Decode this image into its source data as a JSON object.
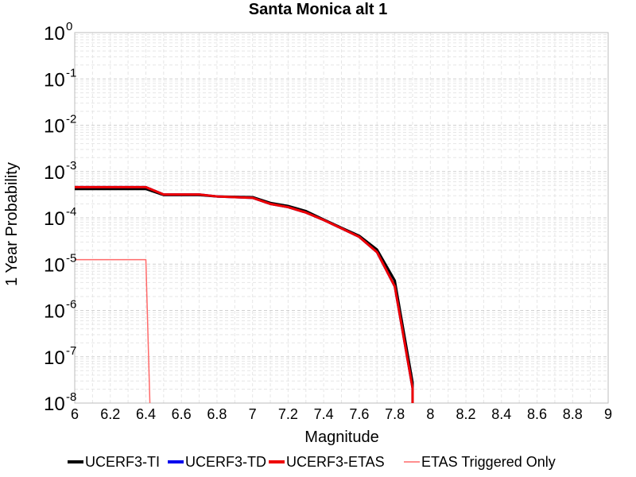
{
  "chart_data": {
    "type": "line",
    "title": "Santa Monica alt 1",
    "xlabel": "Magnitude",
    "ylabel": "1 Year Probability",
    "xlim": [
      6,
      9
    ],
    "ylim": [
      1e-08,
      1
    ],
    "yscale": "log",
    "grid": true,
    "legend_position": "bottom",
    "x_ticks": [
      "6",
      "6.2",
      "6.4",
      "6.6",
      "6.8",
      "7",
      "7.2",
      "7.4",
      "7.6",
      "7.8",
      "8",
      "8.2",
      "8.4",
      "8.6",
      "8.8",
      "9"
    ],
    "y_ticks": [
      {
        "base": "10",
        "exp": "0"
      },
      {
        "base": "10",
        "exp": "-1"
      },
      {
        "base": "10",
        "exp": "-2"
      },
      {
        "base": "10",
        "exp": "-3"
      },
      {
        "base": "10",
        "exp": "-4"
      },
      {
        "base": "10",
        "exp": "-5"
      },
      {
        "base": "10",
        "exp": "-6"
      },
      {
        "base": "10",
        "exp": "-7"
      },
      {
        "base": "10",
        "exp": "-8"
      }
    ],
    "series": [
      {
        "name": "UCERF3-TI",
        "color": "#000000",
        "width": 3,
        "x": [
          6.0,
          6.4,
          6.5,
          6.7,
          6.8,
          7.0,
          7.1,
          7.2,
          7.3,
          7.4,
          7.5,
          7.6,
          7.7,
          7.8,
          7.9,
          7.9
        ],
        "y": [
          0.00042,
          0.00042,
          0.00031,
          0.00031,
          0.00029,
          0.00028,
          0.00021,
          0.00018,
          0.00014,
          9.22e-05,
          6.1e-05,
          4.1e-05,
          2.06e-05,
          4.4e-06,
          2.8e-08,
          1e-09
        ]
      },
      {
        "name": "UCERF3-TD",
        "color": "#0000ee",
        "width": 3,
        "x": [
          6.0,
          6.4,
          6.5,
          6.7,
          6.8,
          7.0,
          7.1,
          7.2,
          7.3,
          7.4,
          7.5,
          7.6,
          7.7,
          7.8,
          7.9,
          7.9
        ],
        "y": [
          0.00046,
          0.00046,
          0.00032,
          0.00032,
          0.00029,
          0.00027,
          0.0002,
          0.00017,
          0.00013,
          8.97e-05,
          5.93e-05,
          3.88e-05,
          1.81e-05,
          3.3e-06,
          2.1e-08,
          1e-09
        ]
      },
      {
        "name": "UCERF3-ETAS",
        "color": "#ee0000",
        "width": 3,
        "x": [
          6.0,
          6.4,
          6.5,
          6.7,
          6.8,
          7.0,
          7.1,
          7.2,
          7.3,
          7.4,
          7.5,
          7.6,
          7.7,
          7.8,
          7.9,
          7.9
        ],
        "y": [
          0.00046,
          0.00046,
          0.00032,
          0.00032,
          0.00029,
          0.00027,
          0.0002,
          0.00017,
          0.00013,
          8.97e-05,
          5.93e-05,
          3.88e-05,
          1.81e-05,
          3.3e-06,
          2.1e-08,
          1e-09
        ]
      },
      {
        "name": "ETAS Triggered Only",
        "color": "#ff6a6a",
        "width": 1.5,
        "x": [
          6.0,
          6.4,
          6.43
        ],
        "y": [
          1.25e-05,
          1.25e-05,
          1e-09
        ]
      }
    ]
  }
}
